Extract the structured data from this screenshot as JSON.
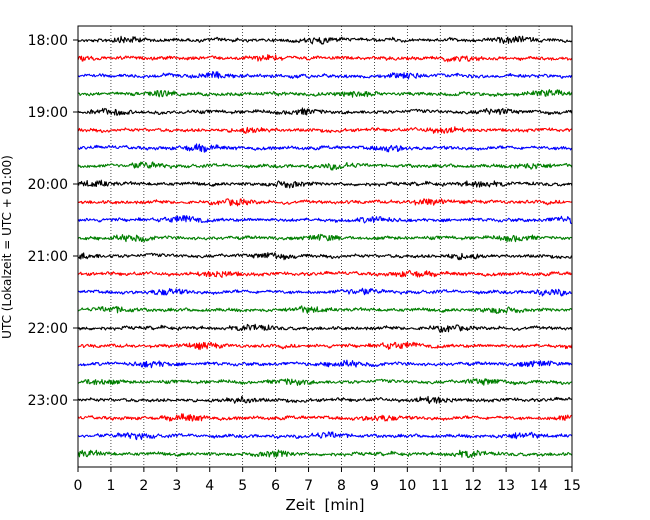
{
  "chart_data": {
    "type": "line",
    "title": "",
    "xlabel": "Zeit  [min]",
    "ylabel": "UTC (Lokalzeit = UTC + 01:00)",
    "xlim": [
      0,
      15
    ],
    "x_ticks": [
      0,
      1,
      2,
      3,
      4,
      5,
      6,
      7,
      8,
      9,
      10,
      11,
      12,
      13,
      14,
      15
    ],
    "y_tick_labels": [
      "18:00",
      "19:00",
      "20:00",
      "21:00",
      "22:00",
      "23:00"
    ],
    "grid": "vertical dotted",
    "legend": "none",
    "trace_interval_min": 15,
    "start_time": "18:00",
    "end_time": "23:45",
    "trace_color_cycle": [
      "#000000",
      "#ff0000",
      "#0000ff",
      "#007f00"
    ],
    "traces": [
      {
        "start": "18:00"
      },
      {
        "start": "18:15"
      },
      {
        "start": "18:30"
      },
      {
        "start": "18:45"
      },
      {
        "start": "19:00"
      },
      {
        "start": "19:15"
      },
      {
        "start": "19:30"
      },
      {
        "start": "19:45"
      },
      {
        "start": "20:00"
      },
      {
        "start": "20:15"
      },
      {
        "start": "20:30"
      },
      {
        "start": "20:45"
      },
      {
        "start": "21:00"
      },
      {
        "start": "21:15"
      },
      {
        "start": "21:30"
      },
      {
        "start": "21:45"
      },
      {
        "start": "22:00"
      },
      {
        "start": "22:15"
      },
      {
        "start": "22:30"
      },
      {
        "start": "22:45"
      },
      {
        "start": "23:00"
      },
      {
        "start": "23:15"
      },
      {
        "start": "23:30"
      },
      {
        "start": "23:45"
      }
    ]
  }
}
